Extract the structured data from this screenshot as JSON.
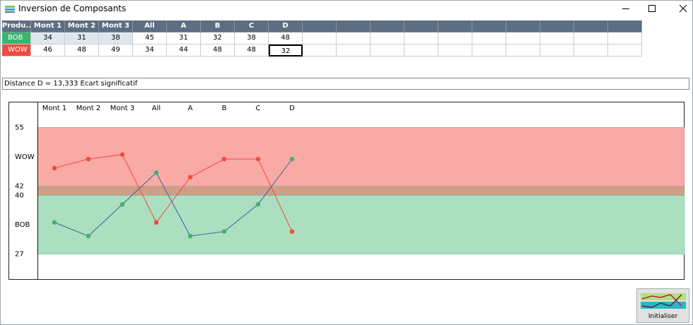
{
  "window": {
    "title": "Inversion de Composants"
  },
  "table": {
    "headers": [
      "Produ...",
      "Mont 1",
      "Mont 2",
      "Mont 3",
      "All",
      "A",
      "B",
      "C",
      "D"
    ],
    "rows": [
      [
        "BOB",
        "34",
        "31",
        "38",
        "45",
        "31",
        "32",
        "38",
        "48"
      ],
      [
        "WOW",
        "46",
        "48",
        "49",
        "34",
        "44",
        "48",
        "48",
        "32"
      ]
    ]
  },
  "status": "Distance D = 13,333 Ecart significatif",
  "chart_data": {
    "type": "line",
    "categories": [
      "Mont 1",
      "Mont 2",
      "Mont 3",
      "All",
      "A",
      "B",
      "C",
      "D"
    ],
    "series": [
      {
        "line_color": "#3a5fa0",
        "marker_color": "#3cb371",
        "values": [
          34,
          31,
          38,
          45,
          31,
          32,
          38,
          48
        ]
      },
      {
        "line_color": "#f04a3e",
        "marker_color": "#f04a3e",
        "values": [
          46,
          48,
          49,
          34,
          44,
          48,
          48,
          32
        ]
      }
    ],
    "bands": [
      {
        "from": 27,
        "to": 40,
        "color": "#acdfbf"
      },
      {
        "from": 40,
        "to": 42,
        "color": "#d09e86"
      },
      {
        "from": 42,
        "to": 55,
        "color": "#f9aaa5"
      }
    ],
    "ylim": [
      21.5,
      60.5
    ],
    "yticks": [
      27,
      {
        "value": 33.5,
        "label": "BOB"
      },
      40,
      42,
      {
        "value": 48.5,
        "label": "WOW"
      },
      55
    ]
  },
  "button": {
    "label": "Initialiser"
  }
}
